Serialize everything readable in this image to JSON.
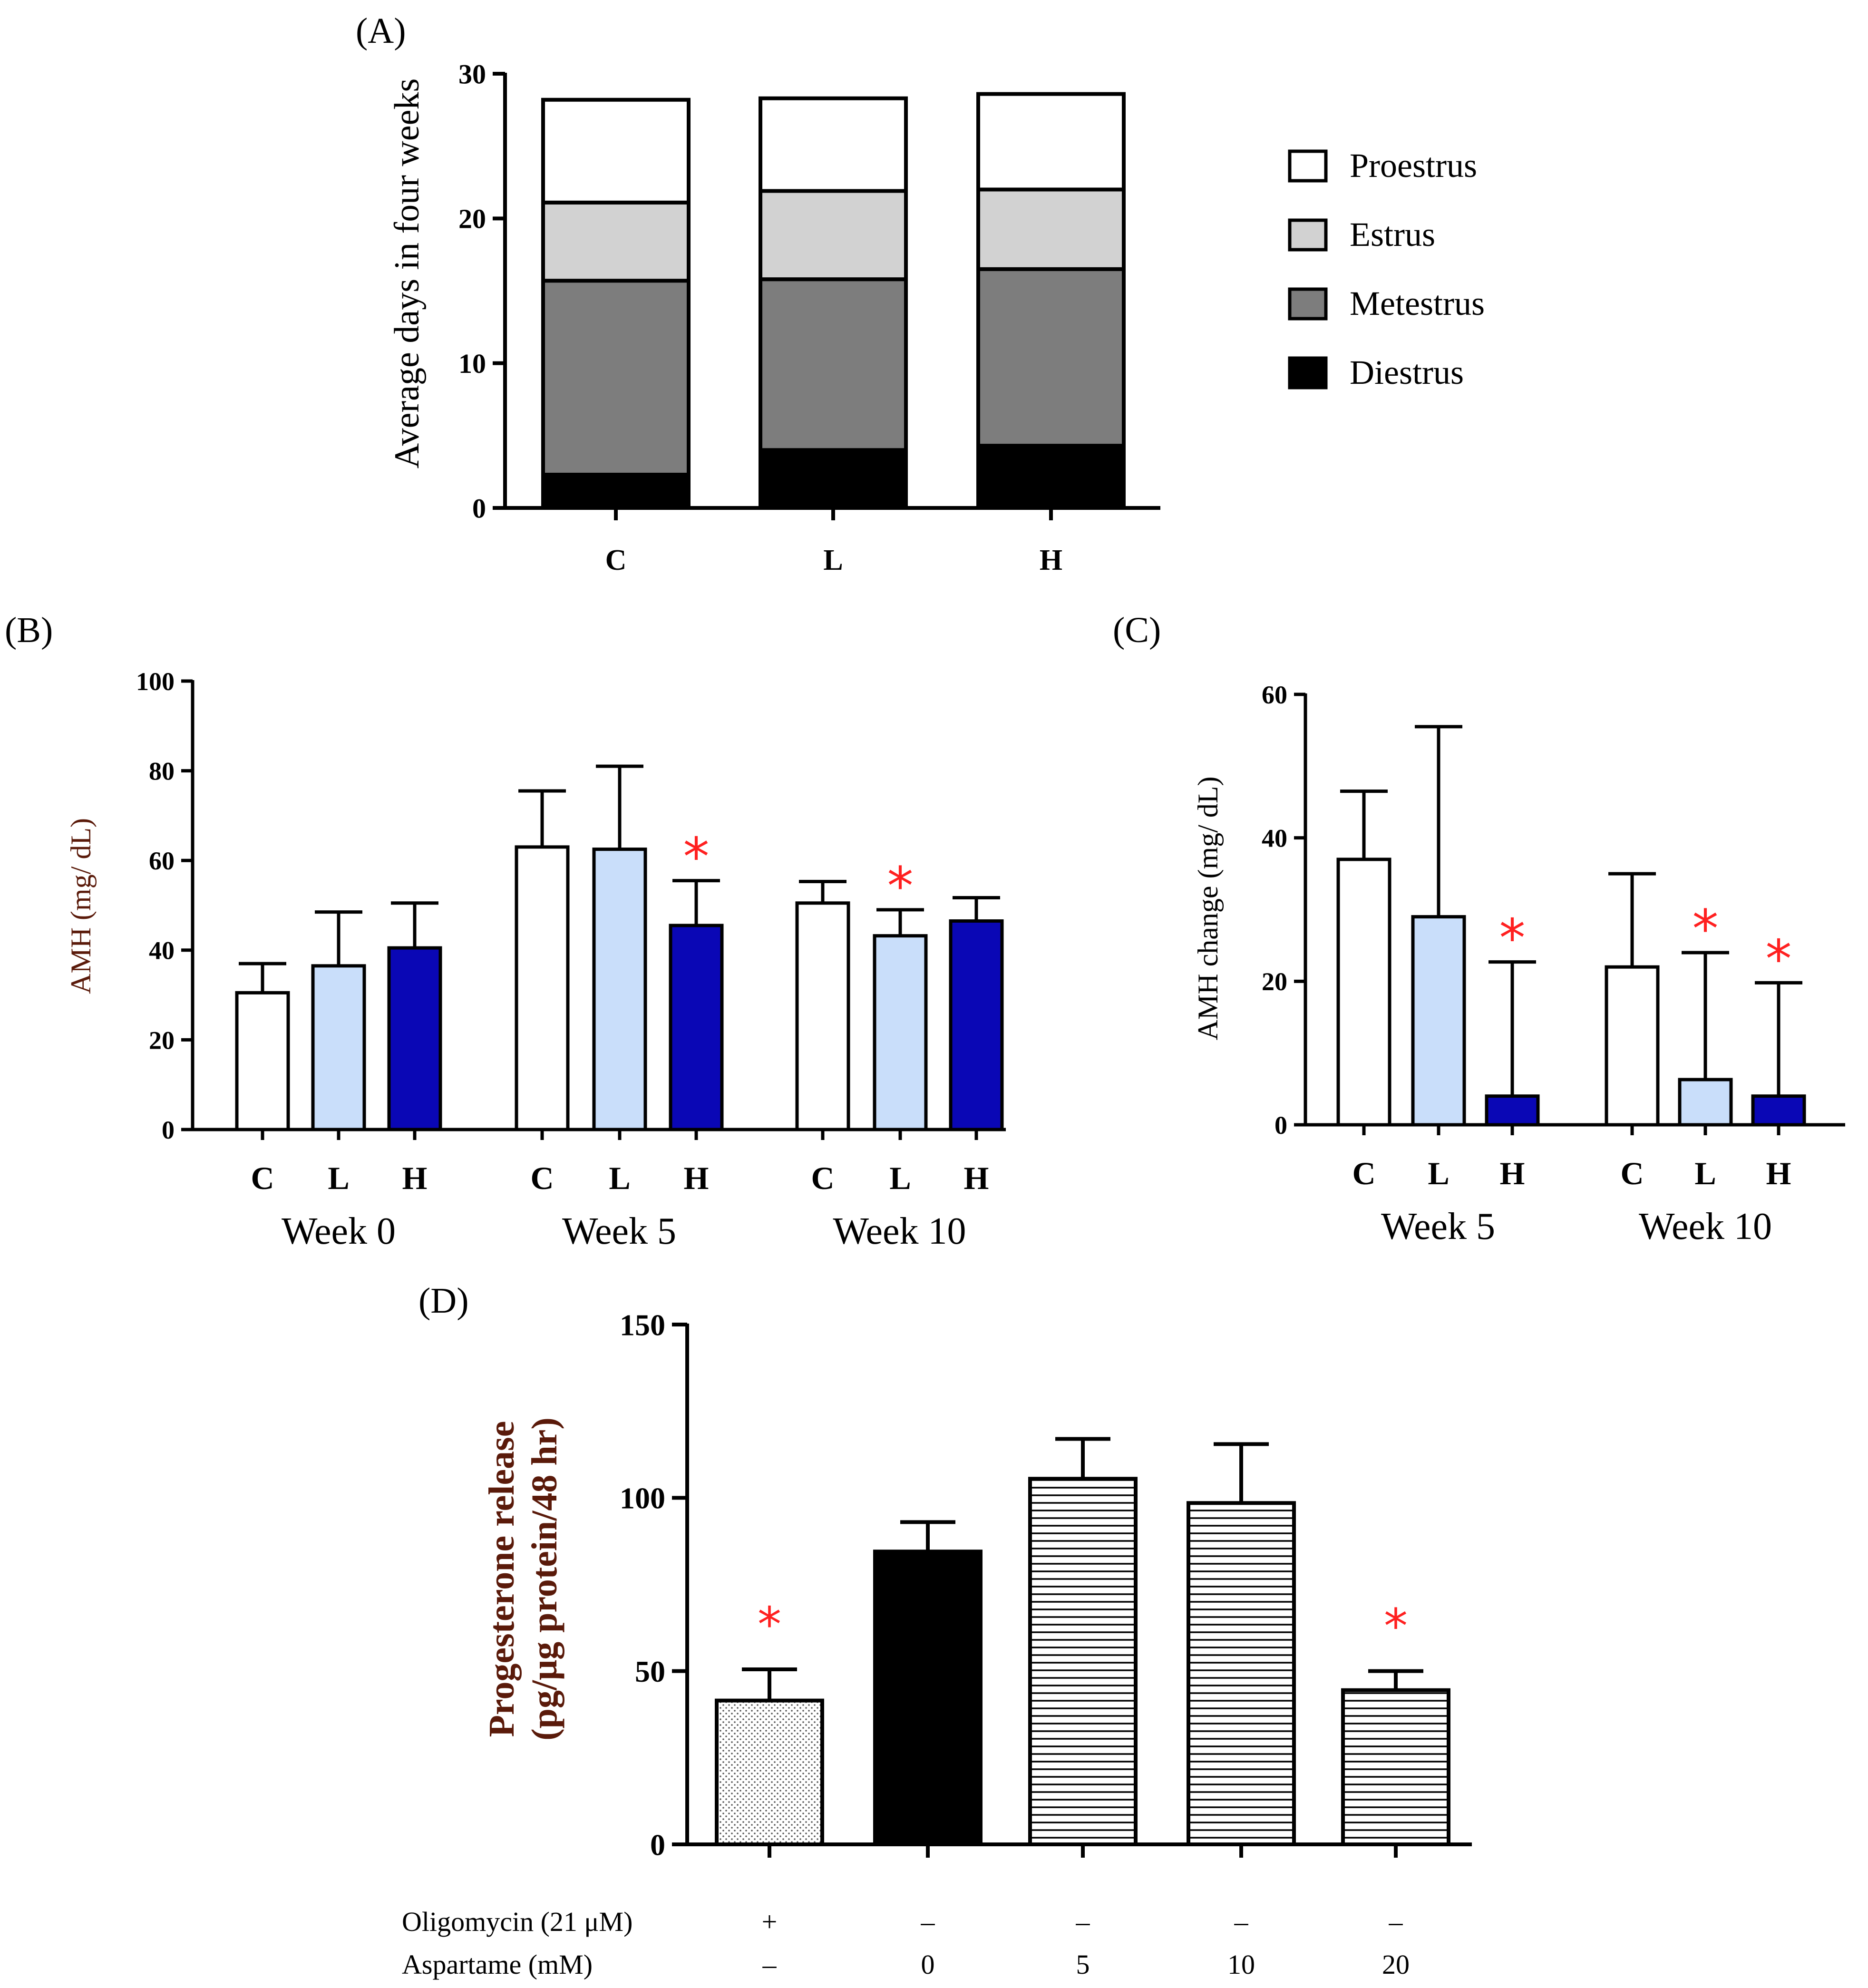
{
  "colors": {
    "white": "#ffffff",
    "light_blue": "#c9defa",
    "dark_blue": "#0a07b5",
    "estrus_gray": "#d2d2d2",
    "metestrus_gray": "#7d7d7d",
    "black": "#000000",
    "red": "#ff2020",
    "dark_red_label": "#5a1a0a"
  },
  "chart_data": [
    {
      "id": "A",
      "panel_label": "(A)",
      "type": "bar",
      "stacked": true,
      "ylabel": "Average days in four weeks",
      "ylim": [
        0,
        30
      ],
      "yticks": [
        "0",
        "10",
        "20",
        "30"
      ],
      "categories": [
        "C",
        "L",
        "H"
      ],
      "series": [
        {
          "name": "Diestrus",
          "color": "#000000",
          "values": [
            2.3,
            4.0,
            4.3
          ]
        },
        {
          "name": "Metestrus",
          "color": "#7d7d7d",
          "values": [
            13.4,
            11.8,
            12.2
          ]
        },
        {
          "name": "Estrus",
          "color": "#d2d2d2",
          "values": [
            5.4,
            6.1,
            5.5
          ]
        },
        {
          "name": "Proestrus",
          "color": "#ffffff",
          "values": [
            7.1,
            6.4,
            6.6
          ]
        }
      ],
      "legend": [
        "Proestrus",
        "Estrus",
        "Metestrus",
        "Diestrus"
      ],
      "legend_placement": "right"
    },
    {
      "id": "B",
      "panel_label": "(B)",
      "type": "bar",
      "ylabel": "AMH (mg/ dL)",
      "ylim": [
        0,
        100
      ],
      "yticks": [
        "0",
        "20",
        "40",
        "60",
        "80",
        "100"
      ],
      "groups": [
        {
          "label": "Week 0",
          "bars": [
            {
              "cat": "C",
              "value": 30.5,
              "err": 6.5,
              "color": "#ffffff",
              "star": false
            },
            {
              "cat": "L",
              "value": 36.5,
              "err": 12.0,
              "color": "#c9defa",
              "star": false
            },
            {
              "cat": "H",
              "value": 40.5,
              "err": 10.0,
              "color": "#0a07b5",
              "star": false
            }
          ]
        },
        {
          "label": "Week 5",
          "bars": [
            {
              "cat": "C",
              "value": 63.0,
              "err": 12.5,
              "color": "#ffffff",
              "star": false
            },
            {
              "cat": "L",
              "value": 62.5,
              "err": 18.5,
              "color": "#c9defa",
              "star": false
            },
            {
              "cat": "H",
              "value": 45.5,
              "err": 10.0,
              "color": "#0a07b5",
              "star": true
            }
          ]
        },
        {
          "label": "Week 10",
          "bars": [
            {
              "cat": "C",
              "value": 50.5,
              "err": 4.8,
              "color": "#ffffff",
              "star": false
            },
            {
              "cat": "L",
              "value": 43.2,
              "err": 5.8,
              "color": "#c9defa",
              "star": true
            },
            {
              "cat": "H",
              "value": 46.5,
              "err": 5.2,
              "color": "#0a07b5",
              "star": false
            }
          ]
        }
      ]
    },
    {
      "id": "C",
      "panel_label": "(C)",
      "type": "bar",
      "ylabel": "AMH change (mg/ dL)",
      "ylim": [
        0,
        60
      ],
      "yticks": [
        "0",
        "20",
        "40",
        "60"
      ],
      "groups": [
        {
          "label": "Week 5",
          "bars": [
            {
              "cat": "C",
              "value": 37.0,
              "err": 9.5,
              "color": "#ffffff",
              "star": false
            },
            {
              "cat": "L",
              "value": 29.0,
              "err": 26.5,
              "color": "#c9defa",
              "star": false
            },
            {
              "cat": "H",
              "value": 4.0,
              "err": 18.7,
              "color": "#0a07b5",
              "star": true
            }
          ]
        },
        {
          "label": "Week 10",
          "bars": [
            {
              "cat": "C",
              "value": 22.0,
              "err": 13.0,
              "color": "#ffffff",
              "star": false
            },
            {
              "cat": "L",
              "value": 6.3,
              "err": 17.7,
              "color": "#c9defa",
              "star": true
            },
            {
              "cat": "H",
              "value": 4.0,
              "err": 15.8,
              "color": "#0a07b5",
              "star": true
            }
          ]
        }
      ]
    },
    {
      "id": "D",
      "panel_label": "(D)",
      "type": "bar",
      "ylabel_lines": [
        "Progesterone release",
        "(pg/μg protein/48 hr)"
      ],
      "ylim": [
        0,
        150
      ],
      "yticks": [
        "0",
        "50",
        "100",
        "150"
      ],
      "bars": [
        {
          "value": 41.5,
          "err": 9.0,
          "fill": "dots",
          "star": true
        },
        {
          "value": 84.5,
          "err": 8.5,
          "fill": "solid",
          "star": false
        },
        {
          "value": 105.5,
          "err": 11.5,
          "fill": "hlines",
          "star": false
        },
        {
          "value": 98.5,
          "err": 17.0,
          "fill": "hlines",
          "star": false
        },
        {
          "value": 44.5,
          "err": 5.5,
          "fill": "hlines",
          "star": true
        }
      ],
      "rows": [
        {
          "label": "Oligomycin (21 μM)",
          "values": [
            "+",
            "–",
            "–",
            "–",
            "–"
          ]
        },
        {
          "label": "Aspartame (mM)",
          "values": [
            "–",
            "0",
            "5",
            "10",
            "20"
          ]
        }
      ]
    }
  ],
  "star_symbol": "*"
}
